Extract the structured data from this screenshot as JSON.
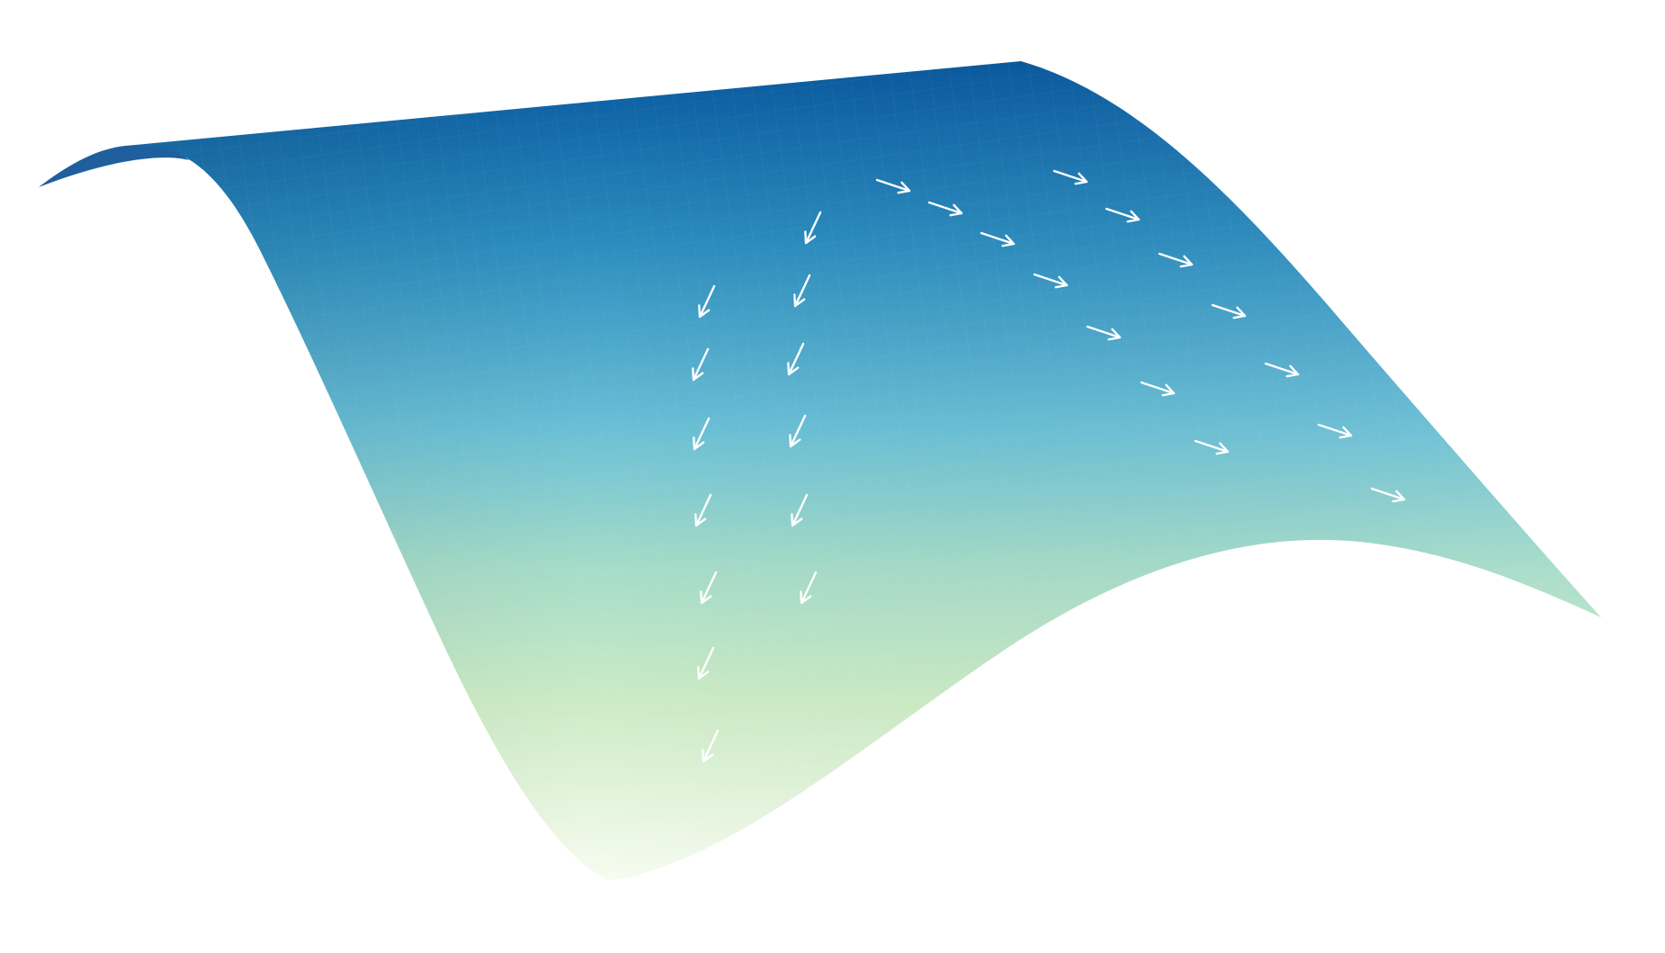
{
  "figure": {
    "surface": {
      "colormap": [
        "#f7fcf0",
        "#ccebc5",
        "#7bccc4",
        "#4eb3d3",
        "#2b8cbe",
        "#08589e"
      ]
    },
    "arrow_color": "#ffffff",
    "arrow_groups": [
      {
        "name": "column-1-arrows",
        "direction": "down-left",
        "count": 7
      },
      {
        "name": "column-2-arrows",
        "direction": "down-left",
        "count": 6
      },
      {
        "name": "diagonal-1-arrows",
        "direction": "right",
        "count": 7
      },
      {
        "name": "diagonal-2-arrows",
        "direction": "right",
        "count": 7
      }
    ]
  }
}
